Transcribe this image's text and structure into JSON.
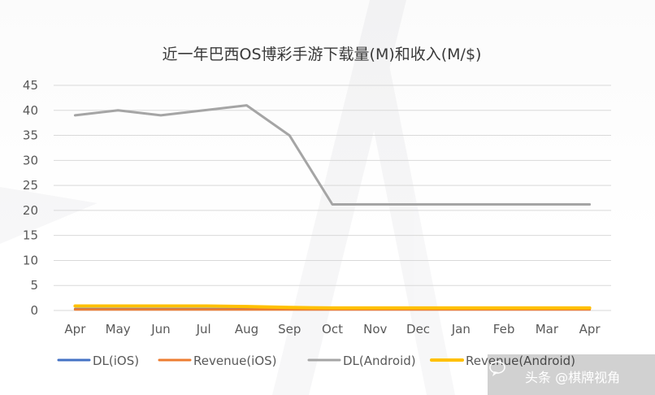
{
  "chart_data": {
    "type": "line",
    "title": "近一年巴西OS博彩手游下载量(M)和收入(M/$)",
    "xlabel": "",
    "ylabel": "",
    "categories": [
      "Apr",
      "May",
      "Jun",
      "Jul",
      "Aug",
      "Sep",
      "Oct",
      "Nov",
      "Dec",
      "Jan",
      "Feb",
      "Mar",
      "Apr"
    ],
    "ylim": [
      0,
      45
    ],
    "yticks": [
      0,
      5,
      10,
      15,
      20,
      25,
      30,
      35,
      40,
      45
    ],
    "grid": true,
    "legend_position": "bottom",
    "series": [
      {
        "name": "DL(iOS)",
        "color": "#4472c4",
        "values": [
          0.3,
          0.3,
          0.3,
          0.3,
          0.3,
          0.3,
          0.3,
          0.3,
          0.3,
          0.3,
          0.3,
          0.3,
          0.3
        ]
      },
      {
        "name": "Revenue(iOS)",
        "color": "#ed7d31",
        "values": [
          0.2,
          0.2,
          0.2,
          0.2,
          0.2,
          0.2,
          0.2,
          0.2,
          0.2,
          0.2,
          0.2,
          0.2,
          0.2
        ]
      },
      {
        "name": "DL(Android)",
        "color": "#a5a5a5",
        "values": [
          39,
          40,
          39,
          40,
          41,
          35,
          21.2,
          21.2,
          21.2,
          21.2,
          21.2,
          21.2,
          21.2
        ]
      },
      {
        "name": "Revenue(Android)",
        "color": "#ffc000",
        "values": [
          0.9,
          0.9,
          0.9,
          0.9,
          0.8,
          0.6,
          0.5,
          0.5,
          0.5,
          0.5,
          0.5,
          0.5,
          0.5
        ]
      }
    ]
  },
  "watermark": {
    "text": "头条 @棋牌视角",
    "icon": "chat-bubble-icon"
  }
}
